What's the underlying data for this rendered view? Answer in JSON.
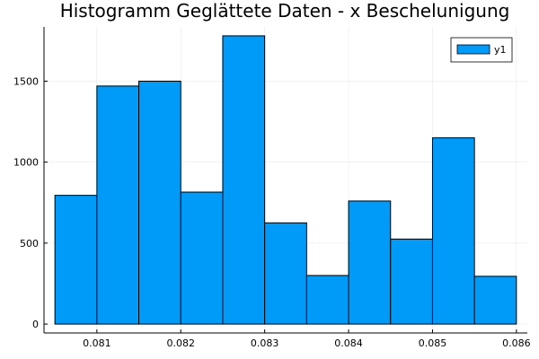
{
  "chart_data": {
    "type": "bar",
    "title": "Histogramm Geglättete Daten - x Beschelunigung",
    "xlabel": "",
    "ylabel": "",
    "bin_edges": [
      0.0805,
      0.081,
      0.0815,
      0.082,
      0.0825,
      0.083,
      0.0835,
      0.084,
      0.0845,
      0.085,
      0.0855,
      0.086
    ],
    "series": [
      {
        "name": "y1",
        "color": "#009af9",
        "values": [
          795,
          1470,
          1500,
          815,
          1780,
          625,
          300,
          760,
          525,
          1150,
          295
        ]
      }
    ],
    "xlim": [
      0.08037,
      0.08613
    ],
    "ylim": [
      -55,
      1835
    ],
    "x_ticks": [
      0.081,
      0.082,
      0.083,
      0.084,
      0.085,
      0.086
    ],
    "x_tick_labels": [
      "0.081",
      "0.082",
      "0.083",
      "0.084",
      "0.085",
      "0.086"
    ],
    "y_ticks": [
      0,
      500,
      1000,
      1500
    ],
    "y_tick_labels": [
      "0",
      "500",
      "1000",
      "1500"
    ],
    "grid": true,
    "legend_position": "top-right"
  }
}
